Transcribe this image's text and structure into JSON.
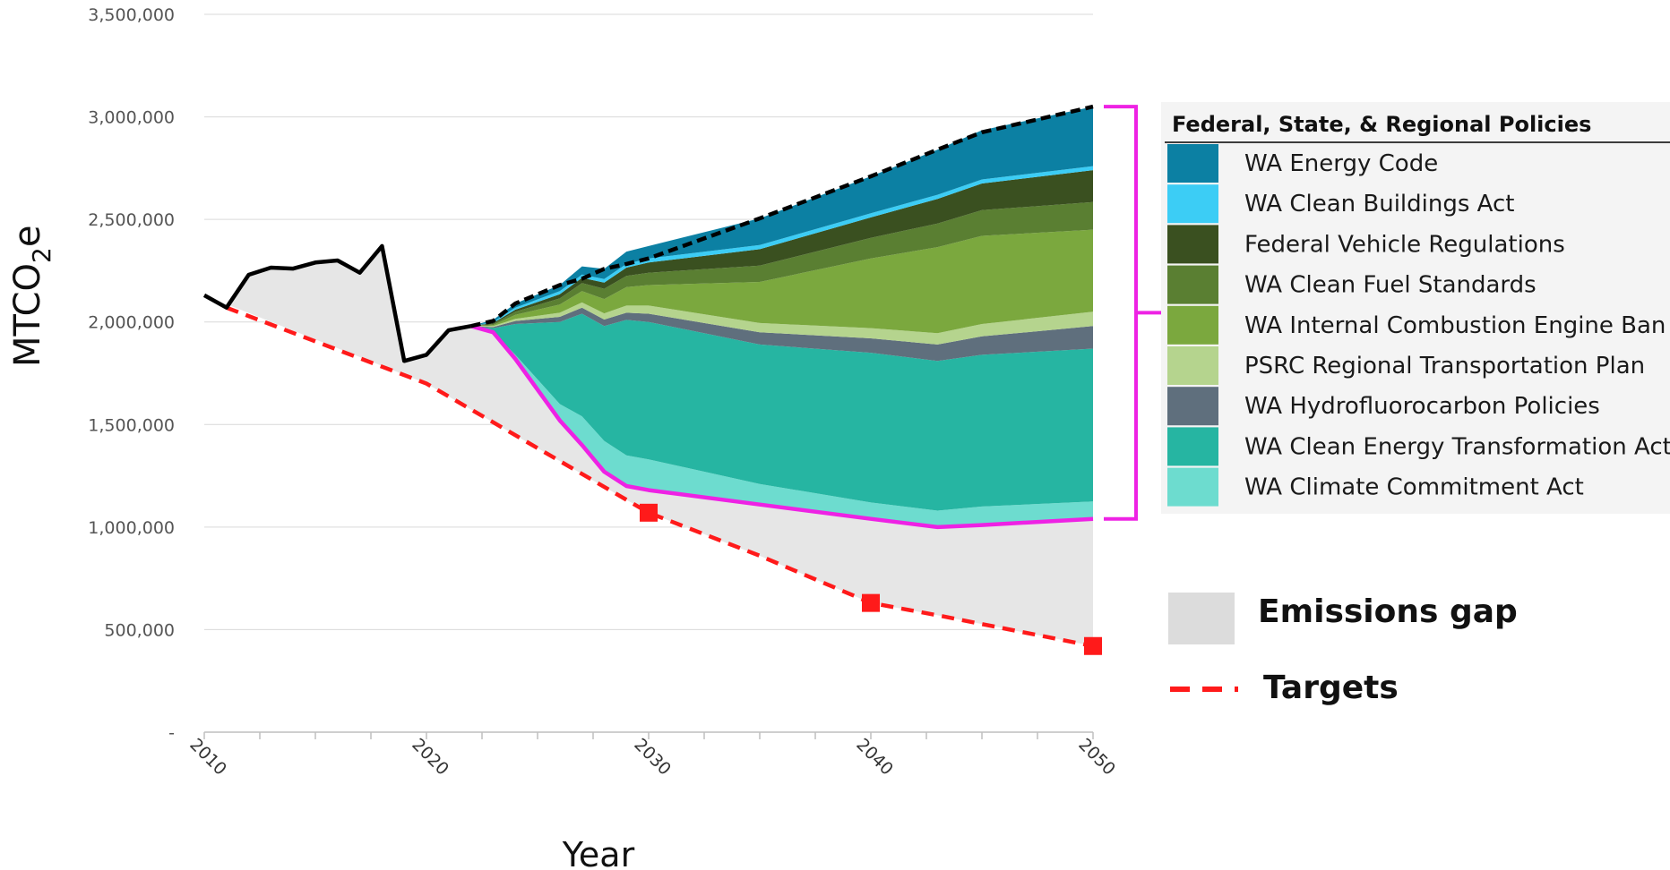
{
  "chart_data": {
    "type": "area",
    "xlabel": "Year",
    "ylabel_main": "MTCO",
    "ylabel_sub": "2",
    "ylabel_tail": "e",
    "xlim": [
      2010,
      2050
    ],
    "ylim": [
      0,
      3500000
    ],
    "y_ticks": [
      {
        "value": 0,
        "label": "-"
      },
      {
        "value": 500000,
        "label": "500,000"
      },
      {
        "value": 1000000,
        "label": "1,000,000"
      },
      {
        "value": 1500000,
        "label": "1,500,000"
      },
      {
        "value": 2000000,
        "label": "2,000,000"
      },
      {
        "value": 2500000,
        "label": "2,500,000"
      },
      {
        "value": 3000000,
        "label": "3,000,000"
      },
      {
        "value": 3500000,
        "label": "3,500,000"
      }
    ],
    "x_ticks": [
      {
        "value": 2010,
        "label": "2010"
      },
      {
        "value": 2020,
        "label": "2020"
      },
      {
        "value": 2030,
        "label": "2030"
      },
      {
        "value": 2040,
        "label": "2040"
      },
      {
        "value": 2050,
        "label": "2050"
      }
    ],
    "grid": "horizontal",
    "years": [
      2022,
      2023,
      2024,
      2026,
      2027,
      2028,
      2029,
      2030,
      2035,
      2040,
      2043,
      2045,
      2050
    ],
    "historical": {
      "x": [
        2010,
        2011,
        2012,
        2013,
        2014,
        2015,
        2016,
        2017,
        2018,
        2019,
        2020,
        2021,
        2022
      ],
      "y": [
        2130000,
        2070000,
        2230000,
        2265000,
        2260000,
        2290000,
        2300000,
        2240000,
        2370000,
        1810000,
        1840000,
        1960000,
        1980000
      ]
    },
    "with_policies": [
      1980000,
      1950000,
      1820000,
      1520000,
      1400000,
      1270000,
      1200000,
      1180000,
      1110000,
      1040000,
      1000000,
      1010000,
      1040000
    ],
    "policy_layers": [
      {
        "name": "WA Climate Commitment Act",
        "color": "#6ddccf",
        "values": [
          0,
          0,
          20000,
          80000,
          140000,
          150000,
          150000,
          150000,
          100000,
          80000,
          80000,
          90000,
          85000
        ]
      },
      {
        "name": "WA Clean Energy Transformation Act",
        "color": "#26b5a2",
        "values": [
          0,
          20000,
          150000,
          400000,
          500000,
          560000,
          660000,
          670000,
          680000,
          730000,
          730000,
          740000,
          745000
        ]
      },
      {
        "name": "WA Hydrofluorocarbon Policies",
        "color": "#5f6f7d",
        "values": [
          0,
          5000,
          15000,
          25000,
          30000,
          32000,
          35000,
          40000,
          60000,
          70000,
          80000,
          90000,
          110000
        ]
      },
      {
        "name": "PSRC Regional Transportation Plan",
        "color": "#b5d48e",
        "values": [
          0,
          5000,
          10000,
          20000,
          25000,
          30000,
          35000,
          40000,
          45000,
          50000,
          55000,
          60000,
          70000
        ]
      },
      {
        "name": "WA Internal Combustion Engine Ban",
        "color": "#7ba83e",
        "values": [
          0,
          5000,
          20000,
          40000,
          55000,
          70000,
          90000,
          100000,
          200000,
          340000,
          420000,
          430000,
          400000
        ]
      },
      {
        "name": "WA Clean Fuel Standards",
        "color": "#5a7f32",
        "values": [
          0,
          5000,
          15000,
          30000,
          40000,
          50000,
          55000,
          60000,
          80000,
          100000,
          115000,
          125000,
          135000
        ]
      },
      {
        "name": "Federal Vehicle Regulations",
        "color": "#3a5020",
        "values": [
          0,
          5000,
          10000,
          20000,
          25000,
          30000,
          40000,
          50000,
          80000,
          100000,
          120000,
          130000,
          155000
        ]
      },
      {
        "name": "WA Clean Buildings Act",
        "color": "#3ccdf5",
        "values": [
          0,
          5000,
          10000,
          15000,
          16000,
          17000,
          18000,
          20000,
          20000,
          20000,
          20000,
          20000,
          20000
        ]
      },
      {
        "name": "WA Energy Code",
        "color": "#0c80a3",
        "values": [
          0,
          10000,
          20000,
          30000,
          40000,
          50000,
          60000,
          60000,
          130000,
          180000,
          220000,
          240000,
          290000
        ]
      }
    ],
    "bau": [
      1980000,
      2005000,
      2090000,
      2180000,
      2211000,
      2259000,
      2283000,
      2310000,
      2505000,
      2710000,
      2840000,
      2925000,
      3050000
    ],
    "targets": {
      "x": [
        2011,
        2020,
        2030,
        2035,
        2040,
        2043,
        2050
      ],
      "y": [
        2070000,
        1700000,
        1070000,
        860000,
        630000,
        570000,
        420000
      ]
    },
    "target_markers": {
      "x": [
        2030,
        2040,
        2050
      ],
      "y": [
        1070000,
        630000,
        420000
      ]
    },
    "colors": {
      "gap": "#e6e6e6",
      "historical": "#000000",
      "bau": "#000000",
      "with_policies": "#ee22e4",
      "targets": "#ff1a1a",
      "bracket": "#ee22e4"
    },
    "legend": {
      "title": "Federal, State, & Regional Policies",
      "placement": "right",
      "items": [
        {
          "label": "WA Energy Code",
          "color": "#0c80a3"
        },
        {
          "label": "WA Clean Buildings Act",
          "color": "#3ccdf5"
        },
        {
          "label": "Federal Vehicle Regulations",
          "color": "#3a5020"
        },
        {
          "label": "WA Clean Fuel Standards",
          "color": "#5a7f32"
        },
        {
          "label": "WA Internal Combustion Engine Ban",
          "color": "#7ba83e"
        },
        {
          "label": "PSRC Regional Transportation Plan",
          "color": "#b5d48e"
        },
        {
          "label": "WA Hydrofluorocarbon Policies",
          "color": "#5f6f7d"
        },
        {
          "label": "WA Clean Energy Transformation Act",
          "color": "#26b5a2"
        },
        {
          "label": "WA Climate Commitment Act",
          "color": "#6ddccf"
        }
      ]
    },
    "extra_legend": [
      {
        "label": "Emissions gap",
        "kind": "swatch",
        "color": "#dcdcdc"
      },
      {
        "label": "Targets",
        "kind": "dash",
        "color": "#ff1a1a"
      }
    ]
  }
}
